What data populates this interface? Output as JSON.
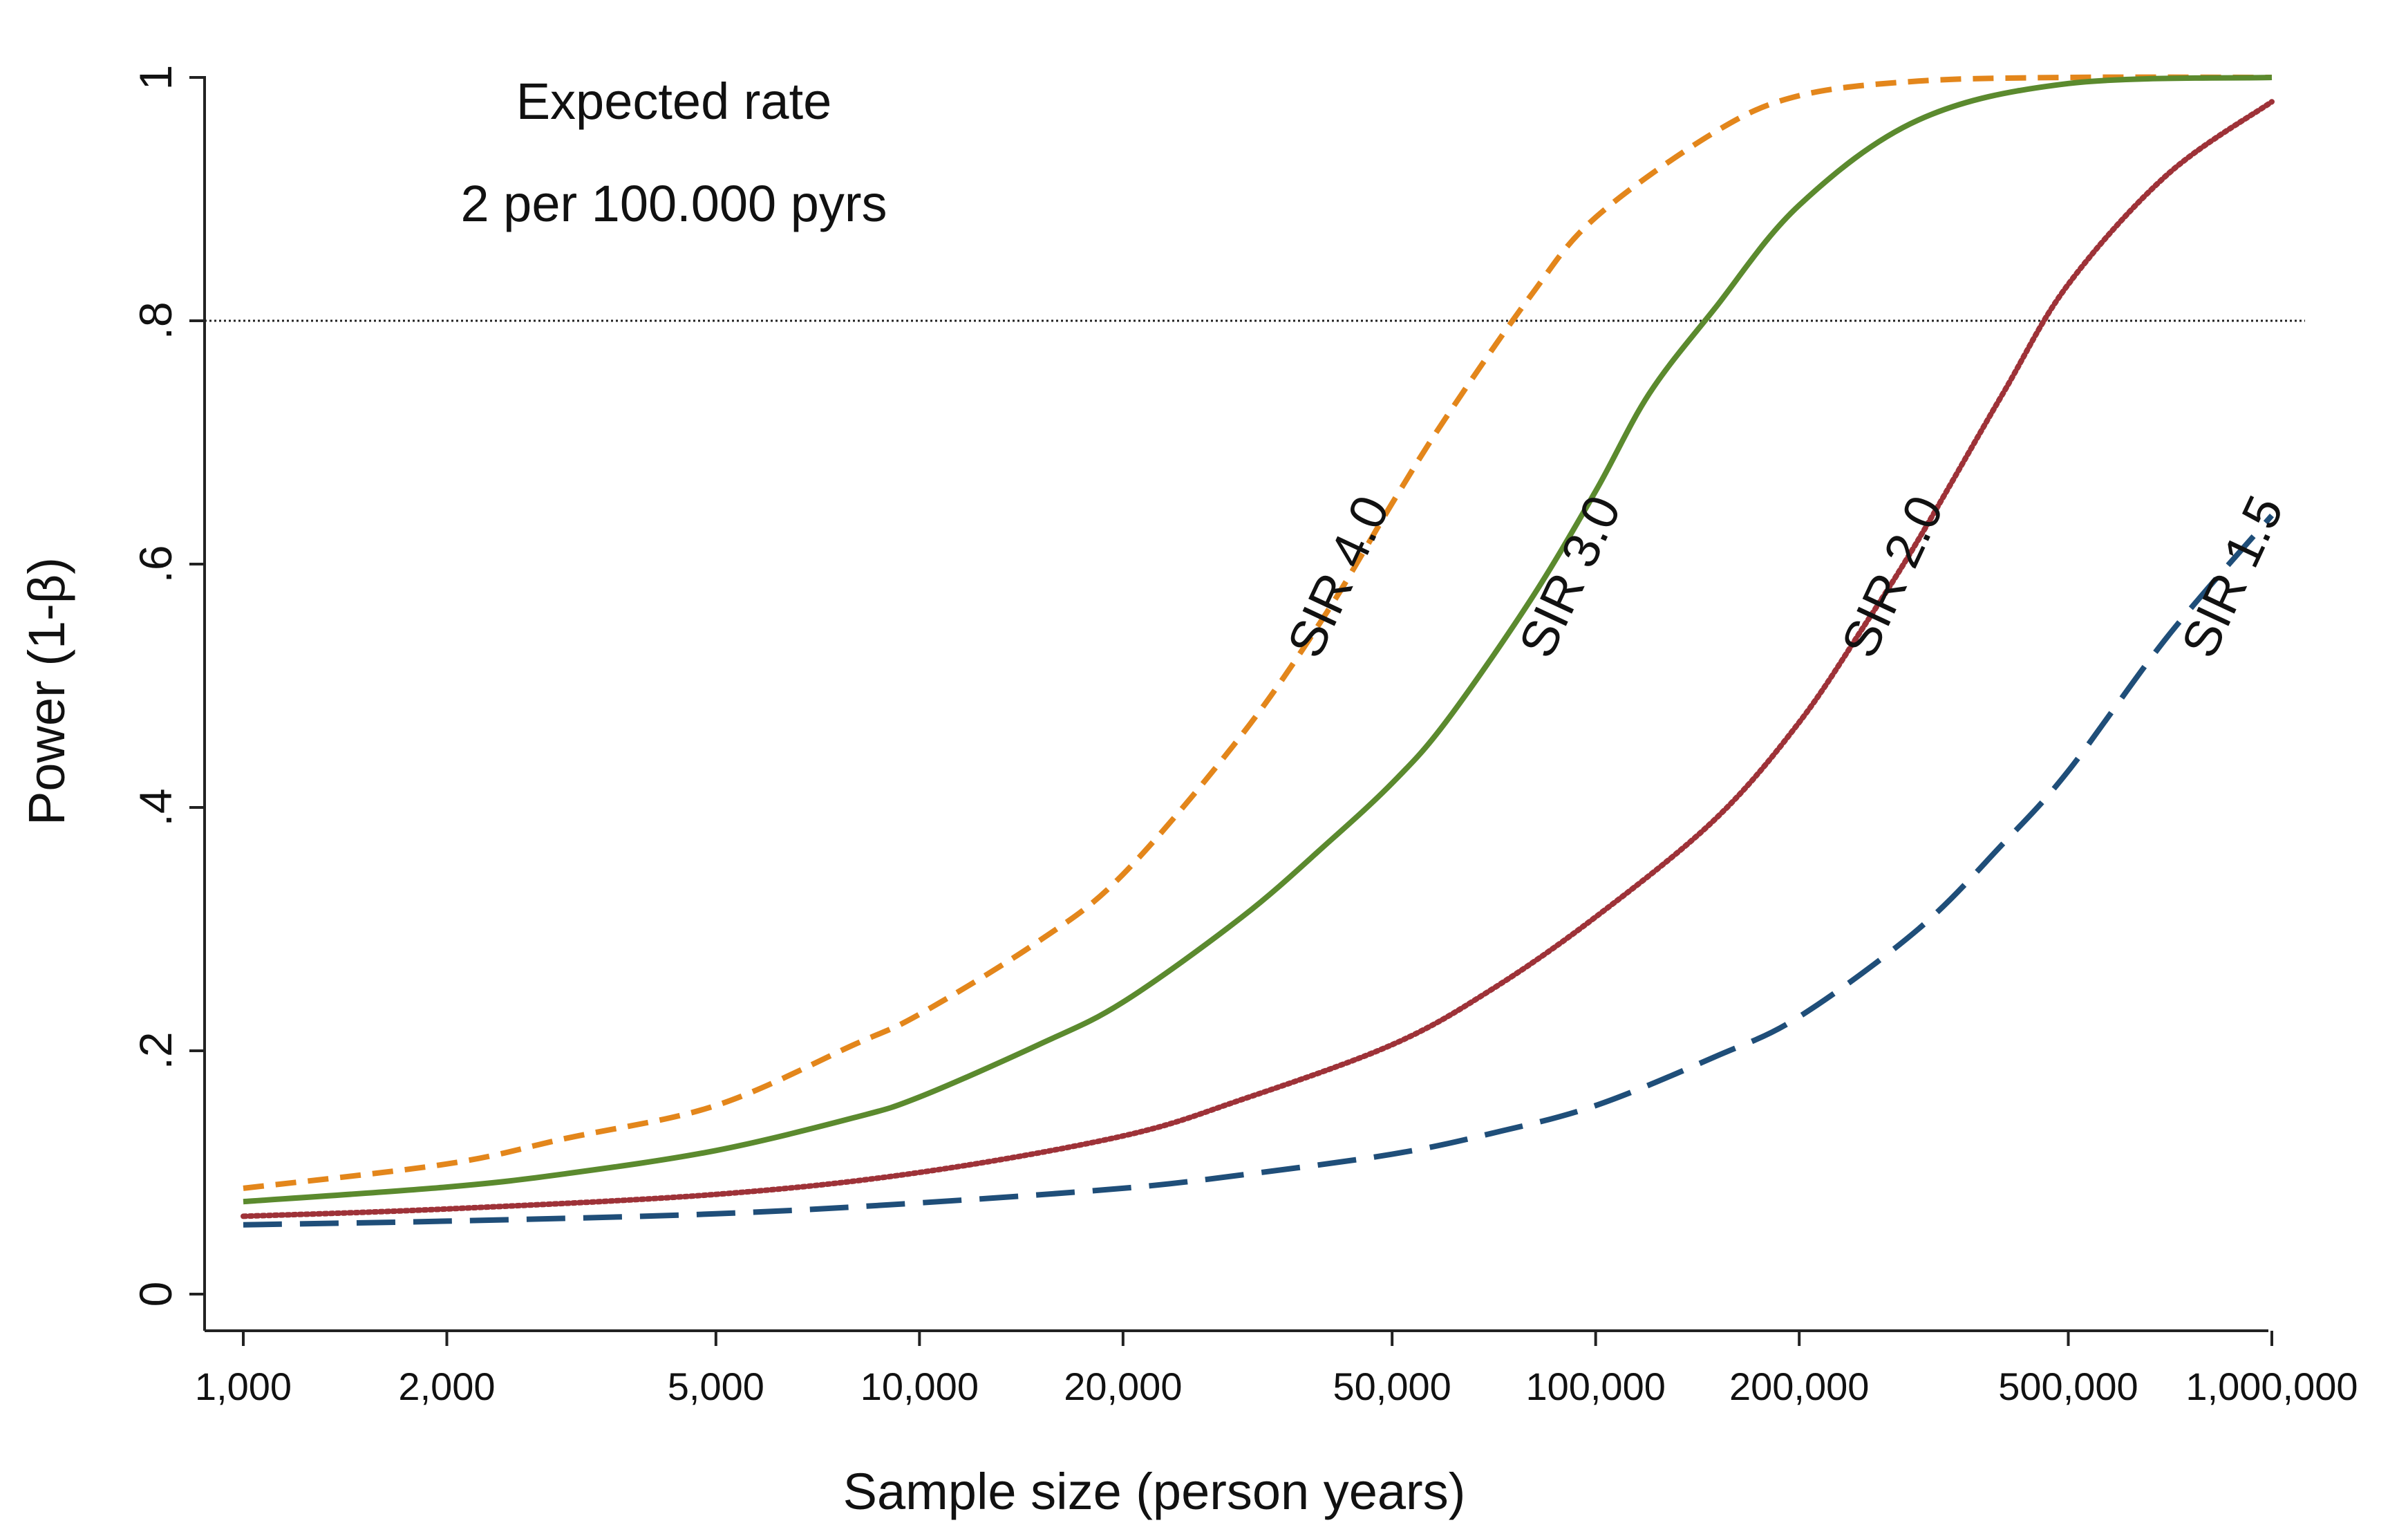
{
  "chart_data": {
    "type": "line",
    "title": "",
    "xlabel": "Sample size (person years)",
    "ylabel": "Power (1-β)",
    "xscale": "log",
    "xlim": [
      1000,
      1000000
    ],
    "ylim": [
      0,
      1
    ],
    "x_ticks": [
      {
        "value": 1000,
        "label": "1,000"
      },
      {
        "value": 2000,
        "label": "2,000"
      },
      {
        "value": 5000,
        "label": "5,000"
      },
      {
        "value": 10000,
        "label": "10,000"
      },
      {
        "value": 20000,
        "label": "20,000"
      },
      {
        "value": 50000,
        "label": "50,000"
      },
      {
        "value": 100000,
        "label": "100,000"
      },
      {
        "value": 200000,
        "label": "200,000"
      },
      {
        "value": 500000,
        "label": "500,000"
      },
      {
        "value": 1000000,
        "label": "1,000,000"
      }
    ],
    "y_ticks": [
      {
        "value": 0,
        "label": "0"
      },
      {
        "value": 0.2,
        "label": ".2"
      },
      {
        "value": 0.4,
        "label": ".4"
      },
      {
        "value": 0.6,
        "label": ".6"
      },
      {
        "value": 0.8,
        "label": ".8"
      },
      {
        "value": 1,
        "label": "1"
      }
    ],
    "reference_line": {
      "y": 0.8
    },
    "annotations": [
      "Expected rate",
      "2 per 100.000 pyrs"
    ],
    "series": [
      {
        "name": "SIR 4.0",
        "label": "SIR 4.0",
        "color": "#e3861b",
        "dash": "dashed",
        "label_anchor": {
          "x": 50000,
          "y": 0.49
        },
        "label_angle": -65,
        "x": [
          1000,
          2000,
          3000,
          5000,
          8000,
          10000,
          15000,
          20000,
          30000,
          40000,
          50000,
          60000,
          80000,
          100000,
          150000,
          200000,
          300000,
          500000,
          1000000
        ],
        "y": [
          0.087,
          0.107,
          0.128,
          0.155,
          0.205,
          0.23,
          0.29,
          0.345,
          0.46,
          0.56,
          0.65,
          0.72,
          0.82,
          0.885,
          0.955,
          0.985,
          0.997,
          1.0,
          1.0
        ]
      },
      {
        "name": "SIR 3.0",
        "label": "SIR 3.0",
        "color": "#5b8a2e",
        "dash": "solid",
        "label_anchor": {
          "x": 110000,
          "y": 0.49
        },
        "label_angle": -65,
        "x": [
          1000,
          2000,
          3000,
          5000,
          8000,
          10000,
          15000,
          20000,
          30000,
          40000,
          50000,
          60000,
          80000,
          100000,
          120000,
          150000,
          200000,
          300000,
          500000,
          1000000
        ],
        "y": [
          0.076,
          0.088,
          0.099,
          0.118,
          0.145,
          0.162,
          0.205,
          0.24,
          0.31,
          0.37,
          0.42,
          0.47,
          0.57,
          0.66,
          0.74,
          0.81,
          0.895,
          0.965,
          0.995,
          1.0
        ]
      },
      {
        "name": "SIR 2.0",
        "label": "SIR 2.0",
        "color": "#9e3238",
        "dash": "dotted",
        "label_anchor": {
          "x": 330000,
          "y": 0.49
        },
        "label_angle": -65,
        "x": [
          1000,
          2000,
          5000,
          10000,
          20000,
          30000,
          50000,
          70000,
          100000,
          150000,
          200000,
          250000,
          300000,
          400000,
          500000,
          700000,
          1000000
        ],
        "y": [
          0.064,
          0.07,
          0.082,
          0.1,
          0.13,
          0.16,
          0.205,
          0.25,
          0.31,
          0.39,
          0.47,
          0.55,
          0.62,
          0.74,
          0.83,
          0.92,
          0.98
        ]
      },
      {
        "name": "SIR 1.5",
        "label": "SIR 1.5",
        "color": "#1f4e79",
        "dash": "longdash",
        "label_anchor": {
          "x": 1050000,
          "y": 0.49
        },
        "label_angle": -65,
        "x": [
          1000,
          2000,
          5000,
          10000,
          20000,
          30000,
          50000,
          70000,
          100000,
          150000,
          200000,
          300000,
          400000,
          500000,
          700000,
          1000000
        ],
        "y": [
          0.057,
          0.06,
          0.066,
          0.075,
          0.087,
          0.098,
          0.115,
          0.132,
          0.155,
          0.195,
          0.228,
          0.3,
          0.37,
          0.43,
          0.54,
          0.64
        ]
      }
    ]
  }
}
